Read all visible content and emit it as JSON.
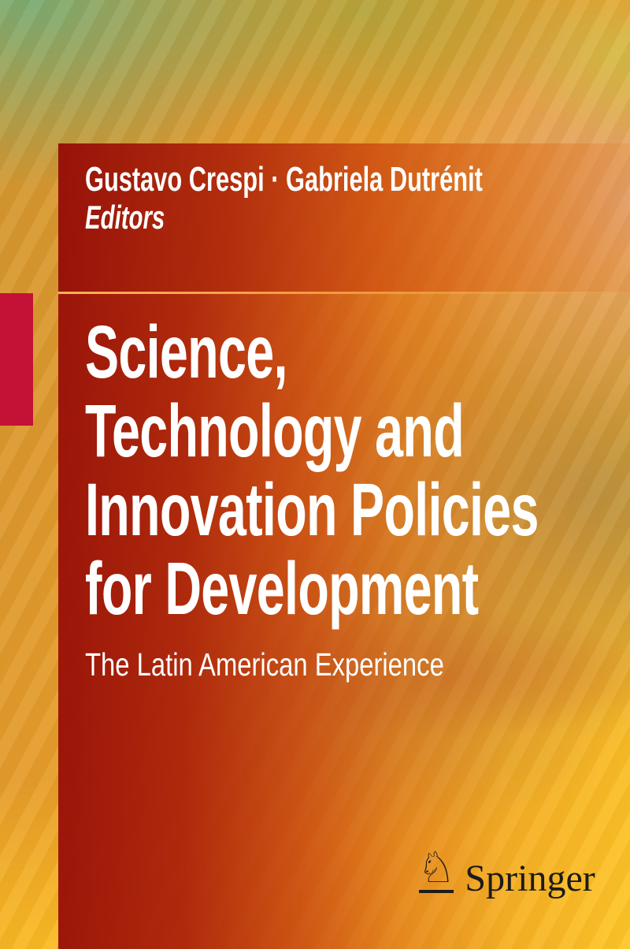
{
  "cover": {
    "authors": "Gustavo Crespi · Gabriela Dutrénit",
    "editors_label": "Editors",
    "title_lines": [
      "Science,",
      "Technology and",
      "Innovation Policies",
      "for Development"
    ],
    "subtitle": "The Latin American Experience",
    "publisher": {
      "name": "Springer",
      "mark_glyph": "♘"
    },
    "colors": {
      "spine_tab_red": "#c31236",
      "panel_red": "#9a130a",
      "panel_orange": "#e27b20",
      "divider_amber": "#f2a94f",
      "background_orange": "#e89c2d",
      "background_yellow": "#fcc022",
      "background_green": "#7fae62",
      "background_pink": "#dfa68c",
      "logo_ink": "#1d1b19",
      "text_white": "#ffffff"
    }
  }
}
